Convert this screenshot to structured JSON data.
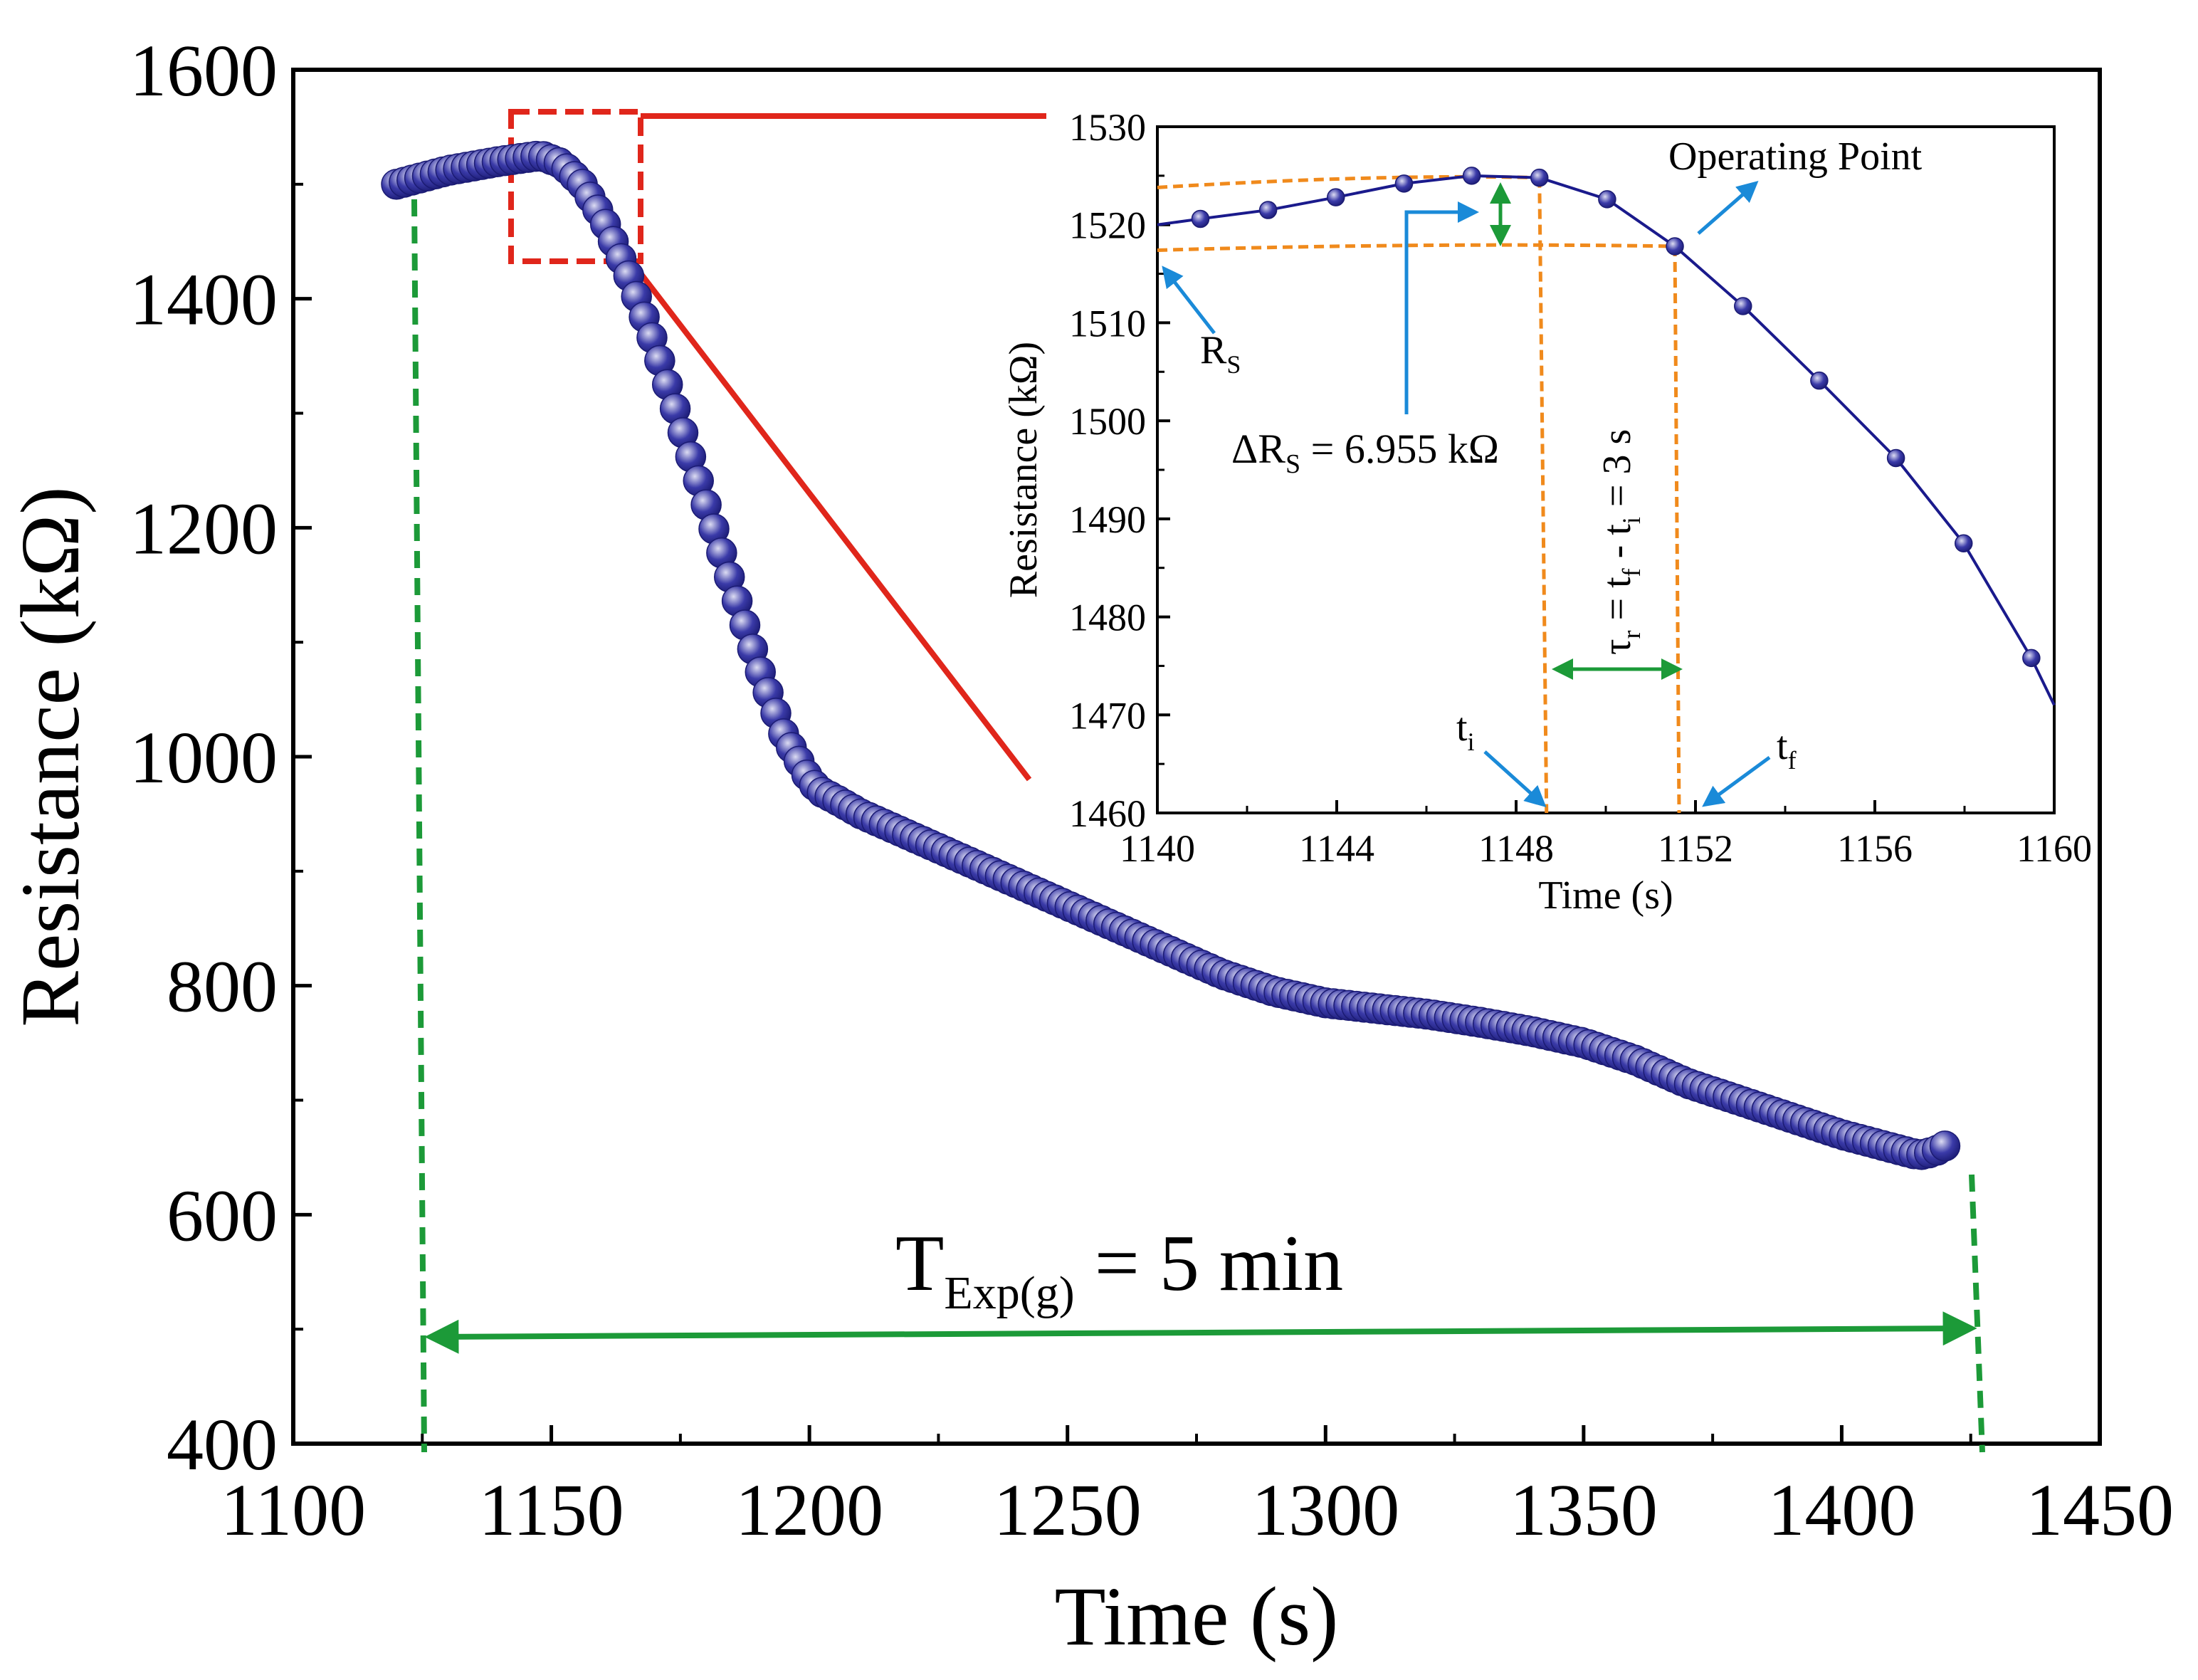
{
  "colors": {
    "marker": "#2e2e9a",
    "marker_highlight": "#dcdcf2",
    "inset_line": "#1a1a8c",
    "zoom_box": "#e0261b",
    "guide_green": "#1c9a38",
    "guide_orange": "#f08a1c",
    "guide_blue": "#1a8ad8"
  },
  "chart_data": [
    {
      "type": "scatter",
      "title": "",
      "xlabel": "Time (s)",
      "ylabel": "Resistance (kΩ)",
      "xlim": [
        1100,
        1450
      ],
      "ylim": [
        400,
        1600
      ],
      "xticks": [
        1100,
        1150,
        1200,
        1250,
        1300,
        1350,
        1400,
        1450
      ],
      "yticks": [
        400,
        600,
        800,
        1000,
        1200,
        1400,
        1600
      ],
      "series": [
        {
          "x": [
            1120,
            1130,
            1140,
            1148,
            1152,
            1156,
            1160,
            1165,
            1170,
            1175,
            1180,
            1185,
            1190,
            1195,
            1200,
            1202,
            1205,
            1210,
            1220,
            1230,
            1240,
            1250,
            1260,
            1270,
            1280,
            1290,
            1300,
            1310,
            1320,
            1330,
            1340,
            1350,
            1360,
            1370,
            1380,
            1390,
            1400,
            1410,
            1415,
            1418,
            1420
          ],
          "y": [
            1500,
            1512,
            1520,
            1525,
            1518,
            1500,
            1470,
            1420,
            1360,
            1290,
            1220,
            1150,
            1080,
            1020,
            980,
            970,
            963,
            950,
            930,
            910,
            890,
            870,
            850,
            830,
            810,
            795,
            785,
            780,
            775,
            768,
            760,
            750,
            735,
            715,
            700,
            685,
            670,
            658,
            652,
            655,
            660
          ]
        }
      ],
      "annotations": {
        "exposure_part1": "T",
        "exposure_sub": "Exp(g)",
        "exposure_part2": " = 5 min"
      }
    },
    {
      "type": "line",
      "title": "",
      "xlabel": "Time (s)",
      "ylabel": "Resistance (kΩ)",
      "xlim": [
        1140,
        1160
      ],
      "ylim": [
        1460,
        1530
      ],
      "xticks": [
        1140,
        1144,
        1148,
        1152,
        1156,
        1160
      ],
      "yticks": [
        1460,
        1470,
        1480,
        1490,
        1500,
        1510,
        1520,
        1530
      ],
      "series": [
        {
          "x": [
            1140.96,
            1142.47,
            1143.98,
            1145.5,
            1147.01,
            1148.52,
            1150.03,
            1151.54,
            1153.06,
            1154.76,
            1156.47,
            1157.98,
            1159.49
          ],
          "y": [
            1520.6,
            1521.5,
            1522.8,
            1524.2,
            1525.0,
            1524.8,
            1522.6,
            1517.8,
            1511.7,
            1504.1,
            1496.2,
            1487.5,
            1475.8
          ]
        }
      ],
      "line_end": {
        "x": 1160,
        "y": 1471
      },
      "annotations": {
        "operating_point": "Operating Point",
        "rs_main": "R",
        "rs_sub": "S",
        "delta_main": "ΔR",
        "delta_sub": "S",
        "delta_value": " = 6.955 kΩ",
        "tau_main": "τ",
        "tau_sub": "r",
        "tau_eq": " = t",
        "tau_f_sub": "f",
        "tau_minus": " - t",
        "tau_i_sub": "i",
        "tau_value": " = 3 s",
        "ti_main": "t",
        "ti_sub": "i",
        "tf_main": "t",
        "tf_sub": "f"
      }
    }
  ]
}
